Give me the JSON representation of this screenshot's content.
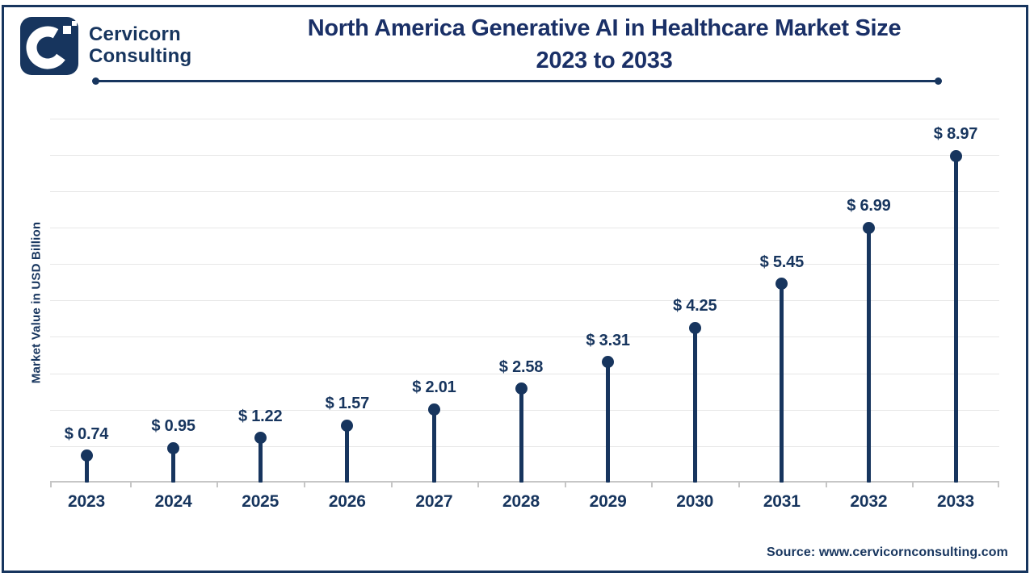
{
  "brand": {
    "line1": "Cervicorn",
    "line2": "Consulting"
  },
  "header": {
    "title_line1": "North America Generative AI in Healthcare Market Size",
    "title_line2": "2023 to 2033"
  },
  "chart_data": {
    "type": "bar",
    "variant": "lollipop",
    "title": "North America Generative AI in Healthcare Market Size 2023 to 2033",
    "categories": [
      "2023",
      "2024",
      "2025",
      "2026",
      "2027",
      "2028",
      "2029",
      "2030",
      "2031",
      "2032",
      "2033"
    ],
    "values": [
      0.74,
      0.95,
      1.22,
      1.57,
      2.01,
      2.58,
      3.31,
      4.25,
      5.45,
      6.99,
      8.97
    ],
    "labels": [
      "$ 0.74",
      "$ 0.95",
      "$ 1.22",
      "$ 1.57",
      "$ 2.01",
      "$ 2.58",
      "$ 3.31",
      "$ 4.25",
      "$ 5.45",
      "$ 6.99",
      "$ 8.97"
    ],
    "xlabel": "",
    "ylabel": "Market Value in USD Billion",
    "ylim": [
      0,
      10
    ],
    "grid": true,
    "gridline_step": 1,
    "legend": "none",
    "unit": "USD Billion"
  },
  "source": {
    "text": "Source: www.cervicornconsulting.com"
  },
  "colors": {
    "navy": "#17355e",
    "title_navy": "#1a3067",
    "gridline": "#e7e7e7",
    "axis": "#c6c6c6",
    "background": "#ffffff"
  }
}
